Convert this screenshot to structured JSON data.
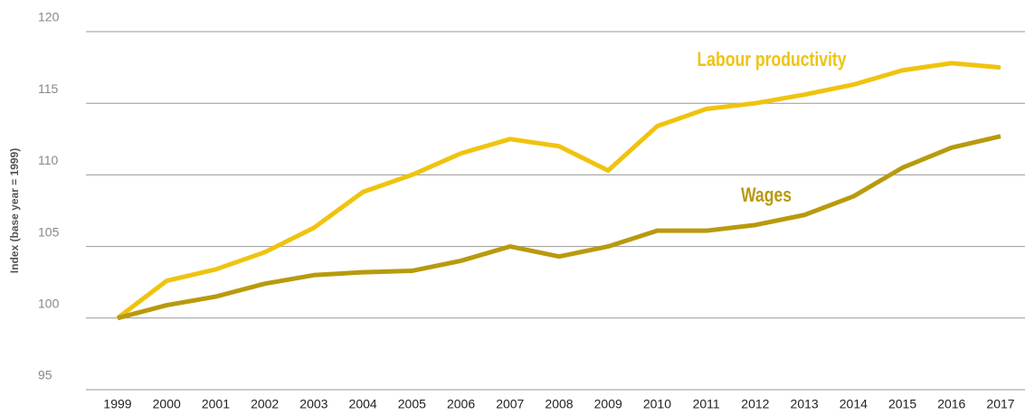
{
  "chart_data": {
    "type": "line",
    "y_label": "Index (base year = 1999)",
    "x": [
      1999,
      2000,
      2001,
      2002,
      2003,
      2004,
      2005,
      2006,
      2007,
      2008,
      2009,
      2010,
      2011,
      2012,
      2013,
      2014,
      2015,
      2016,
      2017
    ],
    "series": [
      {
        "name": "Labour productivity",
        "color": "#f0c30f",
        "values": [
          100,
          102.6,
          103.4,
          104.6,
          106.3,
          108.8,
          110.0,
          111.5,
          112.5,
          112.0,
          110.3,
          113.4,
          114.6,
          115.0,
          115.6,
          116.3,
          117.3,
          117.8,
          117.5
        ]
      },
      {
        "name": "Wages",
        "color": "#b89a0e",
        "values": [
          100,
          100.9,
          101.5,
          102.4,
          103.0,
          103.2,
          103.3,
          104.0,
          105.0,
          104.3,
          105.0,
          106.1,
          106.1,
          106.5,
          107.2,
          108.5,
          110.5,
          111.9,
          112.7
        ]
      }
    ],
    "ylim": [
      95,
      120
    ],
    "yticks": [
      95,
      100,
      105,
      110,
      115,
      120
    ],
    "grid": true
  }
}
